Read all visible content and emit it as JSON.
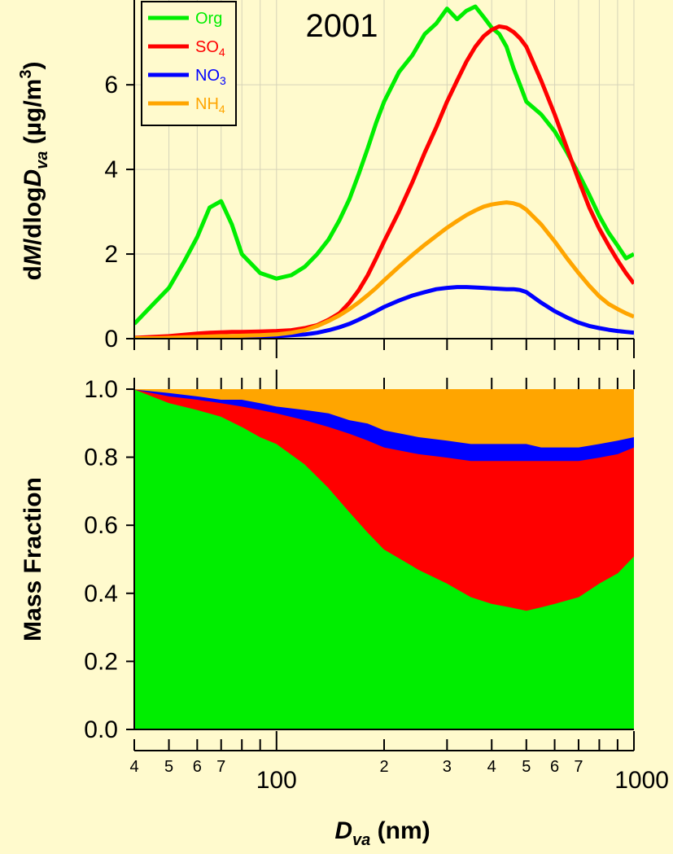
{
  "figure": {
    "background": "#fffacd",
    "year_label": "2001",
    "xlabel_main": "D",
    "xlabel_sub": "va",
    "xlabel_unit": " (nm)",
    "ylabel_top_parts": {
      "d": "d",
      "M": "M",
      "dlog": "/dlog",
      "D": "D",
      "va": "va",
      "unit": " (µg/m",
      "exp": "3",
      "close": ")"
    },
    "ylabel_bottom": "Mass Fraction"
  },
  "chart_data": [
    {
      "type": "line",
      "panel": "size-distribution",
      "xscale": "log",
      "xlim": [
        40,
        1000
      ],
      "ylim": [
        0,
        7.6
      ],
      "yticks": [
        0,
        2,
        4,
        6
      ],
      "grid": true,
      "legend_position": "top-left",
      "x": [
        40,
        45,
        50,
        55,
        60,
        65,
        70,
        75,
        80,
        90,
        100,
        110,
        120,
        130,
        140,
        150,
        160,
        170,
        180,
        190,
        200,
        220,
        240,
        260,
        280,
        300,
        320,
        340,
        360,
        380,
        400,
        420,
        440,
        460,
        480,
        500,
        550,
        600,
        650,
        700,
        750,
        800,
        850,
        900,
        950,
        1000
      ],
      "series": [
        {
          "name": "Org",
          "color": "#00ee00",
          "values": [
            0.35,
            0.8,
            1.2,
            1.8,
            2.4,
            3.1,
            3.25,
            2.7,
            2.0,
            1.55,
            1.42,
            1.5,
            1.7,
            2.0,
            2.35,
            2.8,
            3.3,
            3.9,
            4.5,
            5.1,
            5.6,
            6.3,
            6.7,
            7.2,
            7.45,
            7.8,
            7.55,
            7.75,
            7.85,
            7.6,
            7.35,
            7.2,
            6.9,
            6.4,
            6.0,
            5.6,
            5.3,
            4.9,
            4.4,
            3.9,
            3.4,
            2.9,
            2.5,
            2.2,
            1.9,
            2.0
          ]
        },
        {
          "name": "SO4",
          "color": "#ff0000",
          "values": [
            0.02,
            0.04,
            0.06,
            0.09,
            0.12,
            0.14,
            0.15,
            0.16,
            0.16,
            0.17,
            0.18,
            0.2,
            0.25,
            0.32,
            0.45,
            0.6,
            0.85,
            1.15,
            1.5,
            1.9,
            2.3,
            3.0,
            3.7,
            4.4,
            5.0,
            5.6,
            6.1,
            6.55,
            6.9,
            7.15,
            7.3,
            7.38,
            7.35,
            7.25,
            7.1,
            6.9,
            6.1,
            5.3,
            4.5,
            3.75,
            3.1,
            2.6,
            2.2,
            1.85,
            1.55,
            1.3
          ]
        },
        {
          "name": "NO3",
          "color": "#0000ff",
          "values": [
            0.0,
            0.01,
            0.01,
            0.02,
            0.02,
            0.03,
            0.03,
            0.04,
            0.04,
            0.05,
            0.06,
            0.08,
            0.1,
            0.14,
            0.2,
            0.27,
            0.35,
            0.45,
            0.55,
            0.65,
            0.75,
            0.9,
            1.02,
            1.1,
            1.17,
            1.2,
            1.22,
            1.22,
            1.21,
            1.2,
            1.19,
            1.18,
            1.17,
            1.17,
            1.15,
            1.1,
            0.85,
            0.65,
            0.5,
            0.38,
            0.3,
            0.25,
            0.21,
            0.18,
            0.16,
            0.14
          ]
        },
        {
          "name": "NH4",
          "color": "#ffa500",
          "values": [
            0.01,
            0.01,
            0.02,
            0.03,
            0.04,
            0.05,
            0.06,
            0.06,
            0.07,
            0.08,
            0.1,
            0.14,
            0.2,
            0.3,
            0.42,
            0.55,
            0.7,
            0.86,
            1.03,
            1.2,
            1.38,
            1.7,
            1.98,
            2.22,
            2.43,
            2.62,
            2.78,
            2.92,
            3.03,
            3.12,
            3.17,
            3.2,
            3.22,
            3.2,
            3.15,
            3.05,
            2.7,
            2.3,
            1.9,
            1.55,
            1.25,
            1.0,
            0.82,
            0.7,
            0.6,
            0.52
          ]
        }
      ]
    },
    {
      "type": "area",
      "panel": "mass-fraction",
      "stacked": true,
      "xscale": "log",
      "xlim": [
        40,
        1000
      ],
      "ylim": [
        0,
        1.0
      ],
      "yticks": [
        0.0,
        0.2,
        0.4,
        0.6,
        0.8,
        1.0
      ],
      "xtick_labels": [
        "4",
        "5",
        "6",
        "7",
        "100",
        "2",
        "3",
        "4",
        "5",
        "6",
        "7",
        "1000"
      ],
      "x": [
        40,
        50,
        60,
        70,
        80,
        90,
        100,
        120,
        140,
        160,
        180,
        200,
        250,
        300,
        350,
        400,
        450,
        500,
        550,
        600,
        700,
        800,
        900,
        1000
      ],
      "series": [
        {
          "name": "Org",
          "color": "#00ee00",
          "values": [
            1.0,
            0.96,
            0.94,
            0.92,
            0.89,
            0.86,
            0.84,
            0.78,
            0.71,
            0.64,
            0.58,
            0.53,
            0.47,
            0.43,
            0.39,
            0.37,
            0.36,
            0.35,
            0.36,
            0.37,
            0.39,
            0.43,
            0.46,
            0.51
          ]
        },
        {
          "name": "SO4",
          "color": "#ff0000",
          "values": [
            0.0,
            0.02,
            0.03,
            0.04,
            0.06,
            0.08,
            0.09,
            0.13,
            0.18,
            0.23,
            0.27,
            0.3,
            0.34,
            0.37,
            0.4,
            0.42,
            0.43,
            0.44,
            0.43,
            0.42,
            0.4,
            0.37,
            0.35,
            0.32
          ]
        },
        {
          "name": "NO3",
          "color": "#0000ff",
          "values": [
            0.0,
            0.01,
            0.01,
            0.01,
            0.02,
            0.02,
            0.02,
            0.03,
            0.04,
            0.04,
            0.05,
            0.05,
            0.05,
            0.05,
            0.05,
            0.05,
            0.05,
            0.05,
            0.04,
            0.04,
            0.04,
            0.04,
            0.04,
            0.03
          ]
        },
        {
          "name": "NH4",
          "color": "#ffa500",
          "values": [
            0.0,
            0.01,
            0.02,
            0.03,
            0.03,
            0.04,
            0.05,
            0.06,
            0.07,
            0.09,
            0.1,
            0.12,
            0.14,
            0.15,
            0.16,
            0.16,
            0.16,
            0.16,
            0.17,
            0.17,
            0.17,
            0.16,
            0.15,
            0.14
          ]
        }
      ]
    }
  ]
}
